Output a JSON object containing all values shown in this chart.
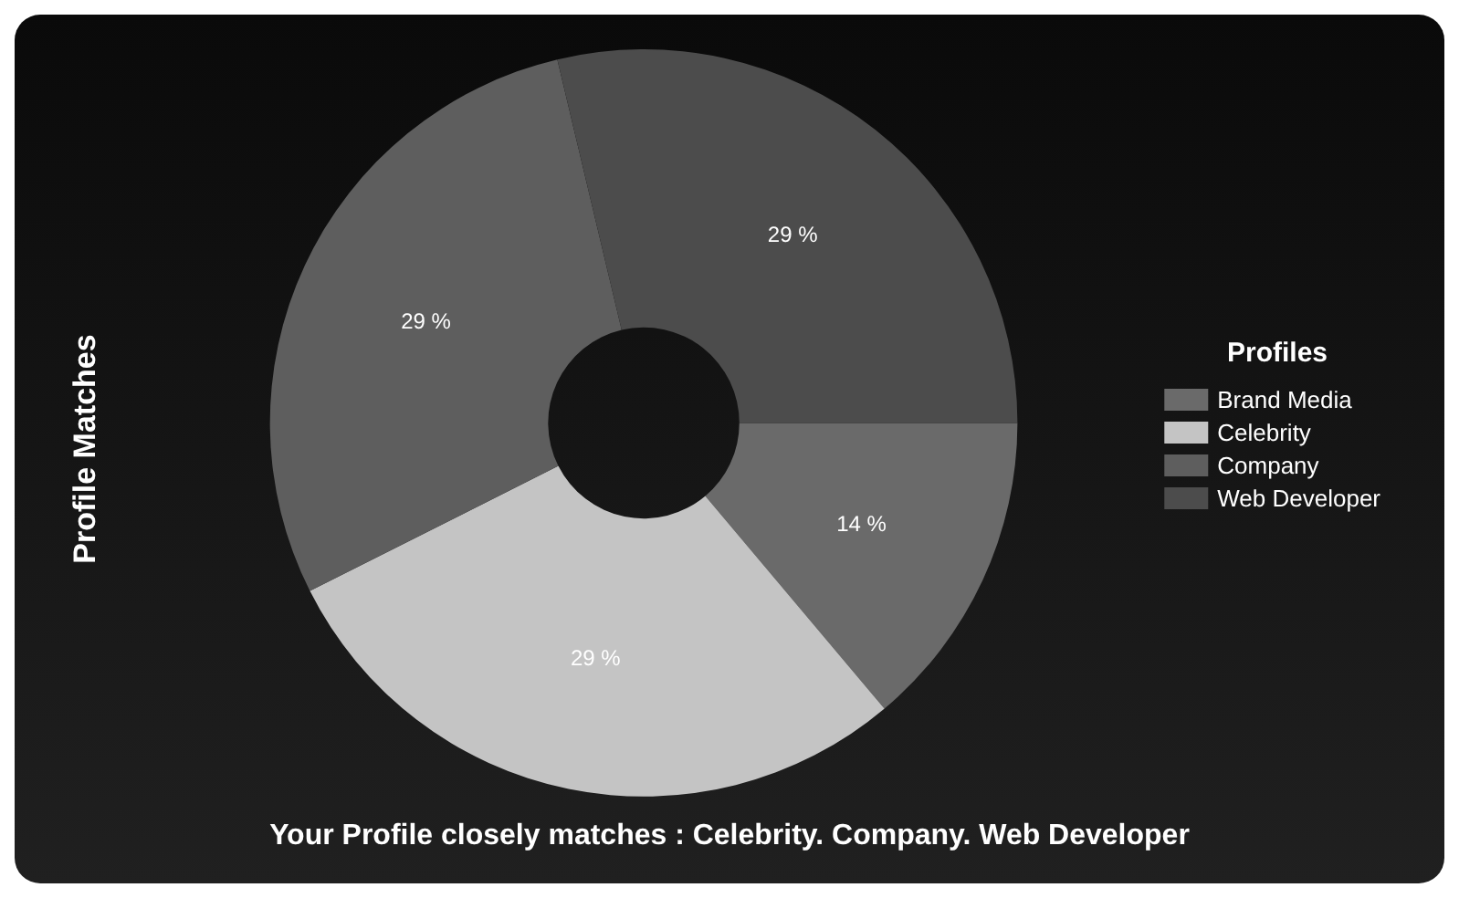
{
  "chart_data": {
    "type": "donut",
    "ylabel": "Profile Matches",
    "legend_title": "Profiles",
    "legend": "right",
    "categories": [
      "Brand Media",
      "Celebrity",
      "Company",
      "Web Developer"
    ],
    "values": [
      14,
      29,
      29,
      29
    ],
    "value_labels": [
      "14 %",
      "29 %",
      "29 %",
      "29 %"
    ],
    "colors": [
      "#6a6a6a",
      "#c4c4c4",
      "#5e5e5e",
      "#4c4c4c"
    ],
    "annotations": [
      "Your Profile closely matches : Celebrity. Company. Web Developer"
    ]
  }
}
